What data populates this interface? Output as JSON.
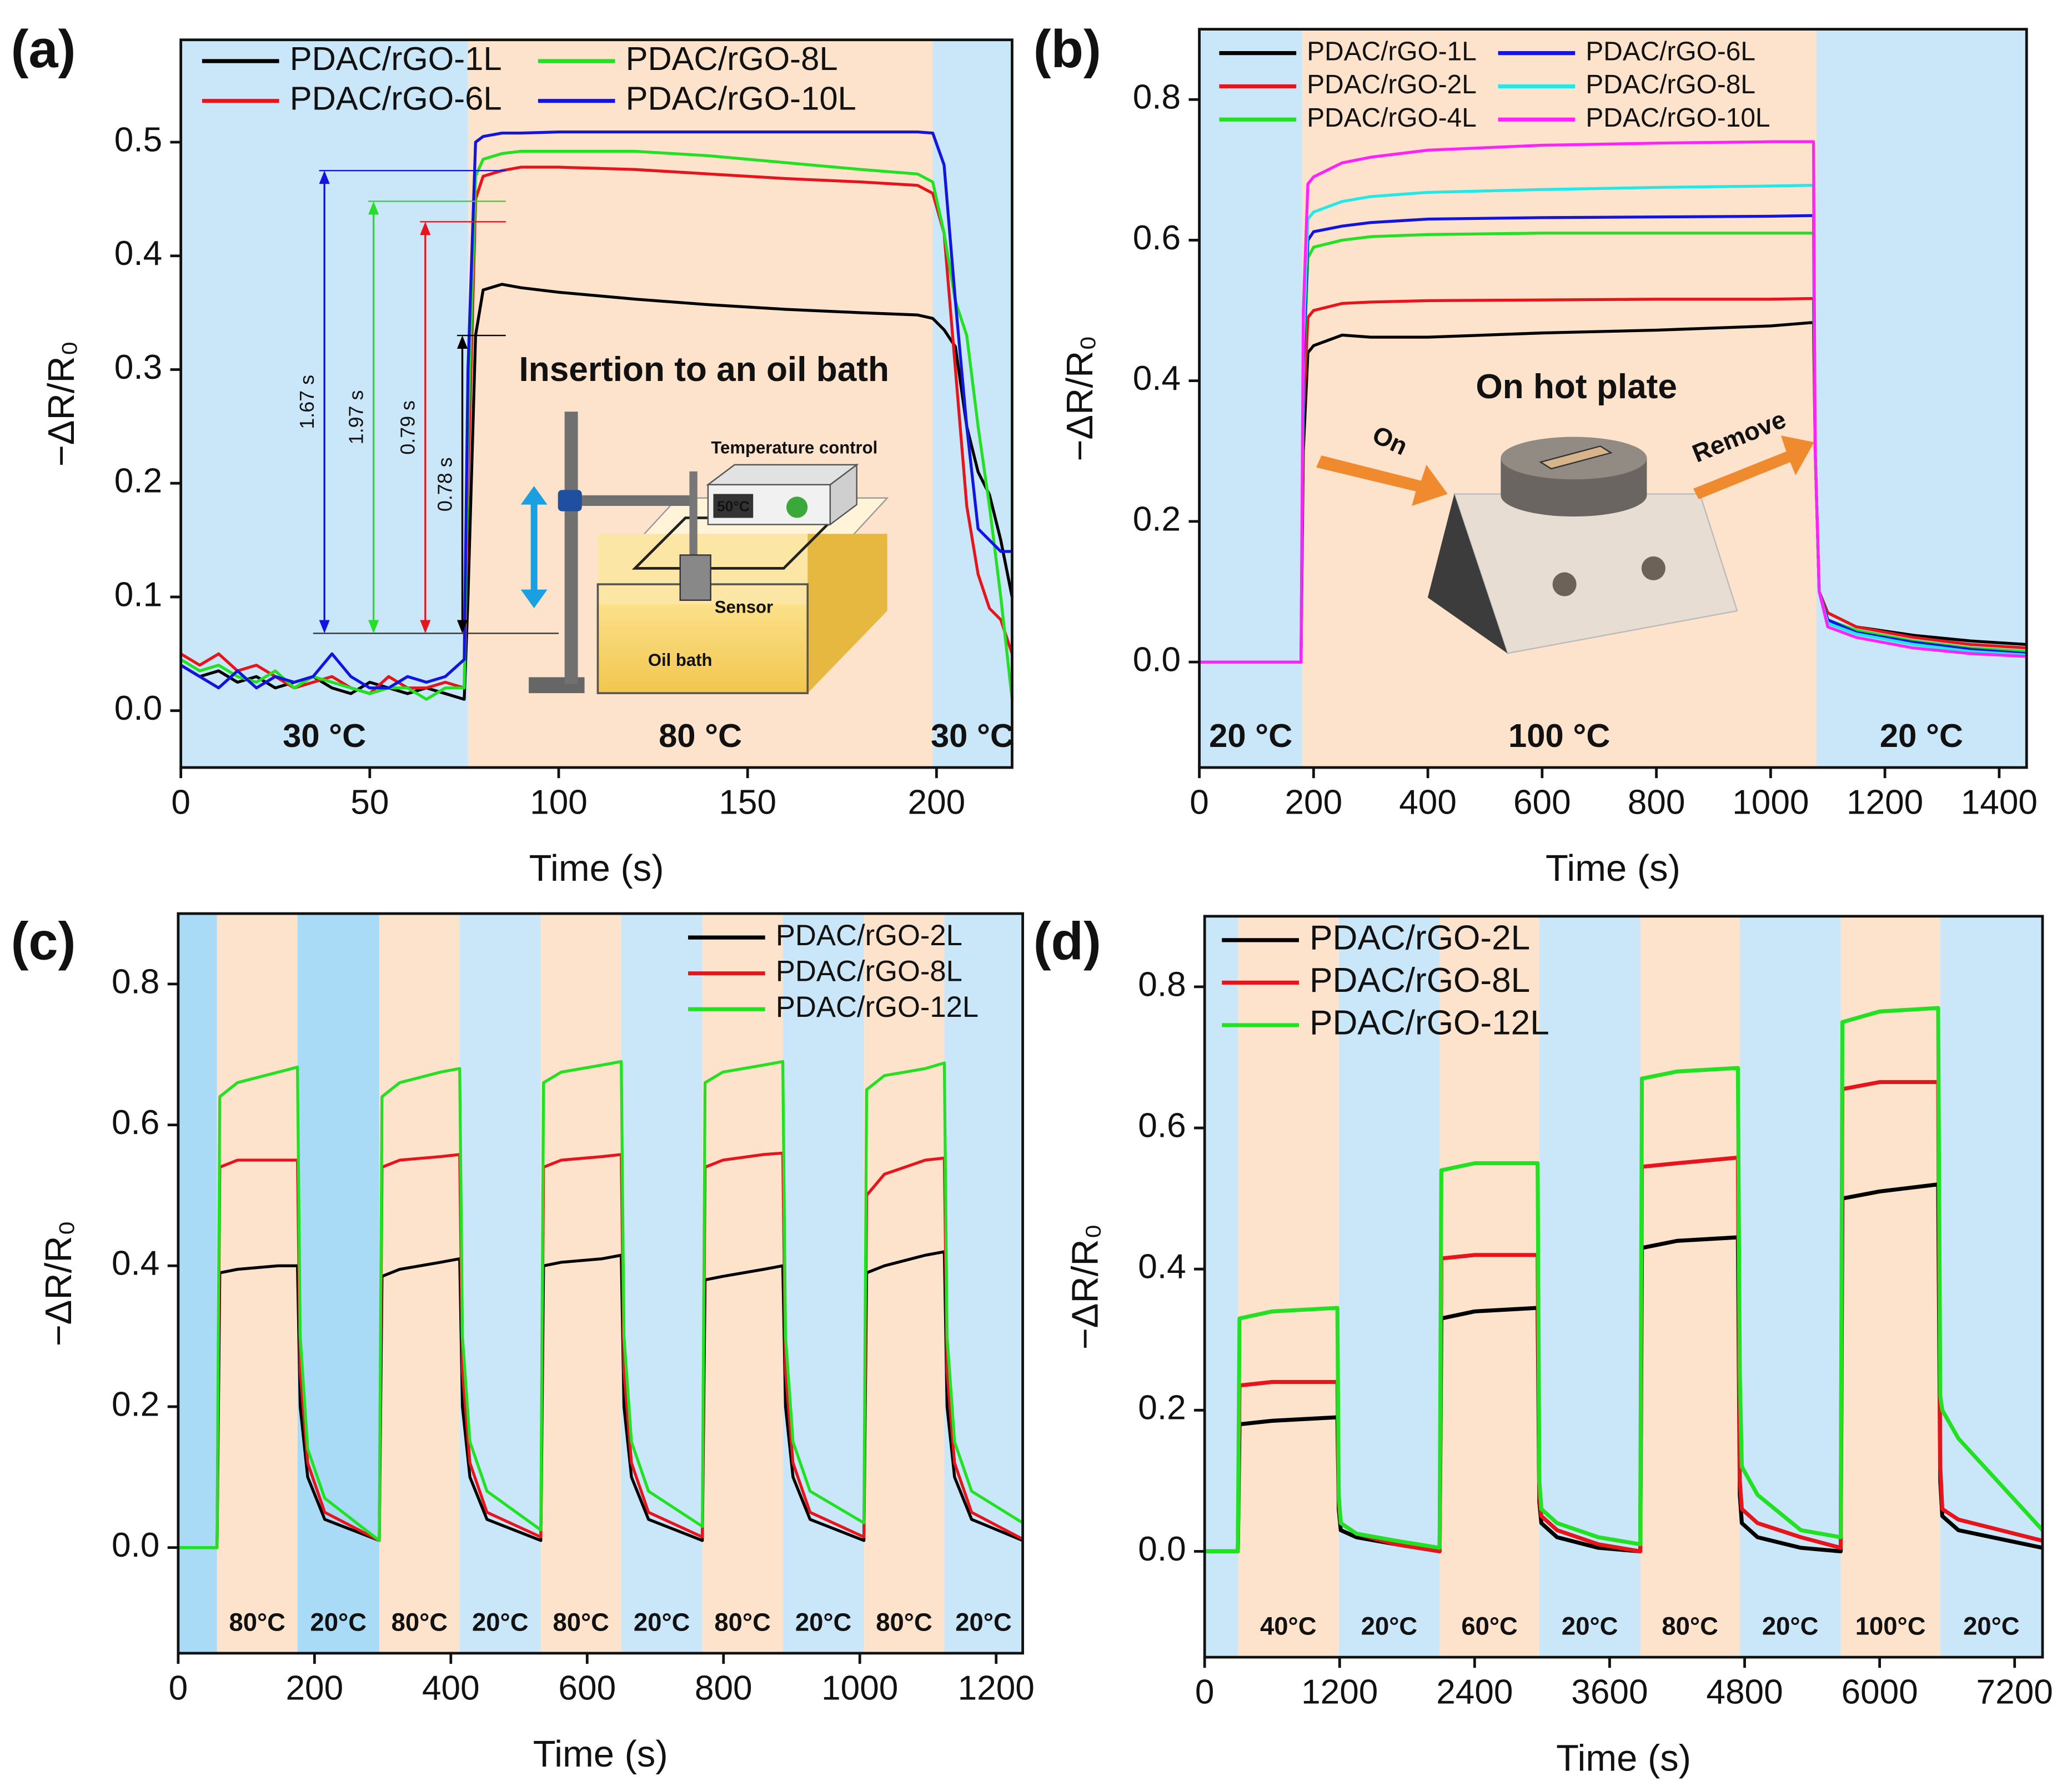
{
  "chart_data": [
    {
      "type": "line",
      "title": "(a)",
      "xlabel": "Time (s)",
      "ylabel": "−ΔR/R₀",
      "xlim": [
        0,
        220
      ],
      "ylim": [
        -0.05,
        0.59
      ],
      "xticks": [
        0,
        50,
        100,
        150,
        200
      ],
      "yticks": [
        {
          "value": 0,
          "label": "0.0"
        },
        0.1,
        0.2,
        0.3,
        0.4,
        0.5
      ],
      "legend": "upper left",
      "legend_columns": 2,
      "regions": [
        {
          "x0": 0,
          "x1": 76,
          "color": "#c9e7f8",
          "label": "30 °C"
        },
        {
          "x0": 76,
          "x1": 199,
          "color": "#fde3cc",
          "label": "80 °C"
        },
        {
          "x0": 199,
          "x1": 220,
          "color": "#c9e7f8",
          "label": "30 °C"
        }
      ],
      "x": [
        0,
        5,
        10,
        15,
        20,
        25,
        30,
        35,
        40,
        45,
        50,
        55,
        60,
        65,
        70,
        75,
        76,
        78,
        80,
        85,
        90,
        100,
        120,
        140,
        160,
        180,
        195,
        199,
        202,
        205,
        208,
        211,
        214,
        217,
        220
      ],
      "series": [
        {
          "name": "PDAC/rGO-1L",
          "color": "#000000",
          "values": [
            0.04,
            0.03,
            0.035,
            0.025,
            0.03,
            0.02,
            0.025,
            0.03,
            0.02,
            0.015,
            0.025,
            0.02,
            0.015,
            0.02,
            0.015,
            0.01,
            0.1,
            0.33,
            0.37,
            0.375,
            0.372,
            0.368,
            0.362,
            0.357,
            0.353,
            0.35,
            0.348,
            0.345,
            0.335,
            0.32,
            0.25,
            0.21,
            0.19,
            0.15,
            0.1
          ]
        },
        {
          "name": "PDAC/rGO-6L",
          "color": "#e8141c",
          "values": [
            0.05,
            0.04,
            0.05,
            0.035,
            0.04,
            0.03,
            0.02,
            0.025,
            0.03,
            0.02,
            0.015,
            0.03,
            0.02,
            0.02,
            0.025,
            0.02,
            0.2,
            0.45,
            0.47,
            0.475,
            0.478,
            0.478,
            0.476,
            0.472,
            0.468,
            0.465,
            0.462,
            0.455,
            0.42,
            0.3,
            0.18,
            0.12,
            0.09,
            0.08,
            0.05
          ]
        },
        {
          "name": "PDAC/rGO-8L",
          "color": "#22e022",
          "values": [
            0.045,
            0.035,
            0.04,
            0.03,
            0.025,
            0.035,
            0.02,
            0.03,
            0.025,
            0.02,
            0.015,
            0.02,
            0.02,
            0.01,
            0.02,
            0.02,
            0.25,
            0.47,
            0.485,
            0.49,
            0.492,
            0.492,
            0.492,
            0.488,
            0.482,
            0.476,
            0.472,
            0.465,
            0.42,
            0.36,
            0.33,
            0.25,
            0.18,
            0.1,
            0.01
          ]
        },
        {
          "name": "PDAC/rGO-10L",
          "color": "#1414e0",
          "values": [
            0.04,
            0.03,
            0.02,
            0.035,
            0.02,
            0.03,
            0.025,
            0.03,
            0.05,
            0.03,
            0.02,
            0.02,
            0.03,
            0.025,
            0.03,
            0.045,
            0.3,
            0.5,
            0.505,
            0.508,
            0.508,
            0.509,
            0.509,
            0.509,
            0.509,
            0.509,
            0.509,
            0.508,
            0.48,
            0.36,
            0.25,
            0.16,
            0.15,
            0.14,
            0.14
          ]
        }
      ],
      "arrow_labels": [
        "1.67 s",
        "1.97 s",
        "0.79 s",
        "0.78 s"
      ],
      "annotations": [
        "Insertion to an oil bath",
        "Temperature control",
        "50°C",
        "Sensor",
        "Oil bath"
      ]
    },
    {
      "type": "line",
      "title": "(b)",
      "xlabel": "Time (s)",
      "ylabel": "−ΔR/R₀",
      "xlim": [
        0,
        1448
      ],
      "ylim": [
        -0.15,
        0.9
      ],
      "xticks": [
        0,
        200,
        400,
        600,
        800,
        1000,
        1200,
        1400
      ],
      "yticks": [
        {
          "value": 0,
          "label": "0.0"
        },
        0.2,
        0.4,
        0.6,
        0.8
      ],
      "legend": "upper left",
      "legend_columns": 2,
      "regions": [
        {
          "x0": 0,
          "x1": 180,
          "color": "#c9e7f8",
          "label": "20 °C"
        },
        {
          "x0": 180,
          "x1": 1080,
          "color": "#fde3cc",
          "label": "100 °C"
        },
        {
          "x0": 1080,
          "x1": 1448,
          "color": "#c9e7f8",
          "label": "20 °C"
        }
      ],
      "x": [
        0,
        178,
        182,
        190,
        200,
        250,
        300,
        400,
        600,
        800,
        1000,
        1075,
        1078,
        1085,
        1100,
        1150,
        1250,
        1350,
        1448
      ],
      "series": [
        {
          "name": "PDAC/rGO-1L",
          "color": "#000000",
          "values": [
            0,
            0,
            0.3,
            0.44,
            0.45,
            0.465,
            0.462,
            0.462,
            0.468,
            0.472,
            0.478,
            0.483,
            0.3,
            0.1,
            0.07,
            0.05,
            0.038,
            0.03,
            0.025
          ]
        },
        {
          "name": "PDAC/rGO-2L",
          "color": "#e8141c",
          "values": [
            0,
            0,
            0.35,
            0.49,
            0.5,
            0.51,
            0.512,
            0.514,
            0.515,
            0.516,
            0.516,
            0.517,
            0.3,
            0.1,
            0.07,
            0.05,
            0.035,
            0.025,
            0.02
          ]
        },
        {
          "name": "PDAC/rGO-4L",
          "color": "#22e022",
          "values": [
            0,
            0,
            0.4,
            0.575,
            0.59,
            0.6,
            0.605,
            0.608,
            0.61,
            0.61,
            0.61,
            0.61,
            0.3,
            0.1,
            0.06,
            0.045,
            0.03,
            0.02,
            0.015
          ]
        },
        {
          "name": "PDAC/rGO-6L",
          "color": "#1414e0",
          "values": [
            0,
            0,
            0.42,
            0.6,
            0.612,
            0.62,
            0.625,
            0.63,
            0.632,
            0.633,
            0.634,
            0.635,
            0.3,
            0.1,
            0.06,
            0.042,
            0.028,
            0.018,
            0.012
          ]
        },
        {
          "name": "PDAC/rGO-8L",
          "color": "#22e8e8",
          "values": [
            0,
            0,
            0.45,
            0.63,
            0.64,
            0.655,
            0.662,
            0.668,
            0.672,
            0.675,
            0.677,
            0.678,
            0.3,
            0.1,
            0.055,
            0.04,
            0.025,
            0.015,
            0.01
          ]
        },
        {
          "name": "PDAC/rGO-10L",
          "color": "#ff22ff",
          "values": [
            0,
            0,
            0.5,
            0.68,
            0.69,
            0.71,
            0.718,
            0.728,
            0.735,
            0.738,
            0.74,
            0.74,
            0.3,
            0.1,
            0.05,
            0.035,
            0.02,
            0.012,
            0.008
          ]
        }
      ],
      "annotations": [
        "On hot plate",
        "On",
        "Remove"
      ]
    },
    {
      "type": "line",
      "title": "(c)",
      "xlabel": "Time (s)",
      "ylabel": "−ΔR/R₀",
      "xlim": [
        0,
        1239
      ],
      "ylim": [
        -0.15,
        0.9
      ],
      "xticks": [
        0,
        200,
        400,
        600,
        800,
        1000,
        1200
      ],
      "yticks": [
        {
          "value": 0,
          "label": "0.0"
        },
        0.2,
        0.4,
        0.6,
        0.8
      ],
      "legend": "upper right",
      "legend_columns": 1,
      "regions": [
        {
          "x0": 0,
          "x1": 57,
          "color": "#a9dbf7"
        },
        {
          "x0": 57,
          "x1": 175,
          "color": "#fde3cc",
          "label": "80°C"
        },
        {
          "x0": 175,
          "x1": 295,
          "color": "#a9dbf7",
          "label": "20°C"
        },
        {
          "x0": 295,
          "x1": 413,
          "color": "#fde3cc",
          "label": "80°C"
        },
        {
          "x0": 413,
          "x1": 532,
          "color": "#c9e7f8",
          "label": "20°C"
        },
        {
          "x0": 532,
          "x1": 650,
          "color": "#fde3cc",
          "label": "80°C"
        },
        {
          "x0": 650,
          "x1": 769,
          "color": "#c9e7f8",
          "label": "20°C"
        },
        {
          "x0": 769,
          "x1": 887,
          "color": "#fde3cc",
          "label": "80°C"
        },
        {
          "x0": 887,
          "x1": 1006,
          "color": "#c9e7f8",
          "label": "20°C"
        },
        {
          "x0": 1006,
          "x1": 1124,
          "color": "#fde3cc",
          "label": "80°C"
        },
        {
          "x0": 1124,
          "x1": 1239,
          "color": "#c9e7f8",
          "label": "20°C"
        }
      ],
      "x": [
        0,
        57,
        61,
        87,
        147,
        175,
        179,
        190,
        215,
        295,
        299,
        325,
        385,
        413,
        417,
        428,
        453,
        532,
        536,
        562,
        622,
        650,
        654,
        665,
        690,
        769,
        773,
        799,
        859,
        887,
        891,
        902,
        927,
        1006,
        1010,
        1036,
        1096,
        1124,
        1128,
        1139,
        1164,
        1239
      ],
      "series": [
        {
          "name": "PDAC/rGO-2L",
          "color": "#000000",
          "values": [
            0,
            0,
            0.39,
            0.395,
            0.4,
            0.4,
            0.2,
            0.1,
            0.04,
            0.01,
            0.385,
            0.395,
            0.405,
            0.41,
            0.2,
            0.1,
            0.04,
            0.01,
            0.4,
            0.405,
            0.41,
            0.415,
            0.2,
            0.1,
            0.04,
            0.01,
            0.38,
            0.385,
            0.395,
            0.4,
            0.2,
            0.1,
            0.04,
            0.01,
            0.39,
            0.4,
            0.415,
            0.42,
            0.2,
            0.1,
            0.04,
            0.01
          ]
        },
        {
          "name": "PDAC/rGO-8L",
          "color": "#e8141c",
          "values": [
            0,
            0,
            0.54,
            0.55,
            0.55,
            0.55,
            0.25,
            0.12,
            0.05,
            0.01,
            0.54,
            0.55,
            0.555,
            0.558,
            0.25,
            0.12,
            0.05,
            0.015,
            0.54,
            0.55,
            0.555,
            0.558,
            0.25,
            0.12,
            0.05,
            0.015,
            0.54,
            0.55,
            0.558,
            0.56,
            0.25,
            0.12,
            0.05,
            0.015,
            0.5,
            0.53,
            0.55,
            0.553,
            0.25,
            0.12,
            0.05,
            0.012
          ]
        },
        {
          "name": "PDAC/rGO-12L",
          "color": "#22e022",
          "values": [
            0,
            0,
            0.64,
            0.66,
            0.675,
            0.682,
            0.3,
            0.14,
            0.07,
            0.01,
            0.64,
            0.66,
            0.675,
            0.68,
            0.3,
            0.15,
            0.08,
            0.025,
            0.66,
            0.675,
            0.685,
            0.69,
            0.3,
            0.15,
            0.08,
            0.03,
            0.66,
            0.675,
            0.685,
            0.69,
            0.3,
            0.15,
            0.08,
            0.035,
            0.65,
            0.67,
            0.68,
            0.688,
            0.3,
            0.15,
            0.08,
            0.035
          ]
        }
      ]
    },
    {
      "type": "line",
      "title": "(d)",
      "xlabel": "Time (s)",
      "ylabel": "−ΔR/R₀",
      "xlim": [
        0,
        7448
      ],
      "ylim": [
        -0.15,
        0.9
      ],
      "xticks": [
        0,
        1200,
        2400,
        3600,
        4800,
        6000,
        7200
      ],
      "yticks": [
        {
          "value": 0,
          "label": "0.0"
        },
        0.2,
        0.4,
        0.6,
        0.8
      ],
      "legend": "upper left",
      "legend_columns": 1,
      "regions": [
        {
          "x0": 0,
          "x1": 295,
          "color": "#c9e7f8"
        },
        {
          "x0": 295,
          "x1": 1192,
          "color": "#fde3cc",
          "label": "40°C"
        },
        {
          "x0": 1192,
          "x1": 2089,
          "color": "#c9e7f8",
          "label": "20°C"
        },
        {
          "x0": 2089,
          "x1": 2975,
          "color": "#fde3cc",
          "label": "60°C"
        },
        {
          "x0": 2975,
          "x1": 3872,
          "color": "#c9e7f8",
          "label": "20°C"
        },
        {
          "x0": 3872,
          "x1": 4757,
          "color": "#fde3cc",
          "label": "80°C"
        },
        {
          "x0": 4757,
          "x1": 5654,
          "color": "#c9e7f8",
          "label": "20°C"
        },
        {
          "x0": 5654,
          "x1": 6539,
          "color": "#fde3cc",
          "label": "100°C"
        },
        {
          "x0": 6539,
          "x1": 7448,
          "color": "#c9e7f8",
          "label": "20°C"
        }
      ],
      "x": [
        0,
        295,
        310,
        600,
        1180,
        1192,
        1210,
        1350,
        1700,
        2089,
        2104,
        2400,
        2960,
        2975,
        2993,
        3133,
        3500,
        3872,
        3887,
        4200,
        4740,
        4757,
        4775,
        4915,
        5300,
        5654,
        5669,
        6000,
        6520,
        6539,
        6557,
        6700,
        7448
      ],
      "series": [
        {
          "name": "PDAC/rGO-2L",
          "color": "#000000",
          "values": [
            0,
            0,
            0.18,
            0.185,
            0.19,
            0.06,
            0.03,
            0.02,
            0.01,
            0,
            0.33,
            0.34,
            0.345,
            0.07,
            0.04,
            0.02,
            0.005,
            0,
            0.43,
            0.44,
            0.445,
            0.08,
            0.04,
            0.02,
            0.005,
            0,
            0.5,
            0.51,
            0.52,
            0.1,
            0.05,
            0.03,
            0.005
          ]
        },
        {
          "name": "PDAC/rGO-8L",
          "color": "#e8141c",
          "values": [
            0,
            0,
            0.235,
            0.24,
            0.24,
            0.07,
            0.04,
            0.025,
            0.01,
            0,
            0.415,
            0.42,
            0.42,
            0.08,
            0.05,
            0.03,
            0.01,
            0,
            0.545,
            0.55,
            0.558,
            0.1,
            0.06,
            0.04,
            0.02,
            0.005,
            0.655,
            0.665,
            0.665,
            0.12,
            0.06,
            0.045,
            0.015
          ]
        },
        {
          "name": "PDAC/rGO-12L",
          "color": "#22e022",
          "values": [
            0,
            0,
            0.33,
            0.34,
            0.345,
            0.08,
            0.04,
            0.025,
            0.015,
            0.005,
            0.54,
            0.55,
            0.55,
            0.1,
            0.06,
            0.04,
            0.02,
            0.01,
            0.67,
            0.68,
            0.685,
            0.25,
            0.12,
            0.08,
            0.03,
            0.02,
            0.75,
            0.765,
            0.77,
            0.22,
            0.2,
            0.16,
            0.03
          ]
        }
      ]
    }
  ]
}
